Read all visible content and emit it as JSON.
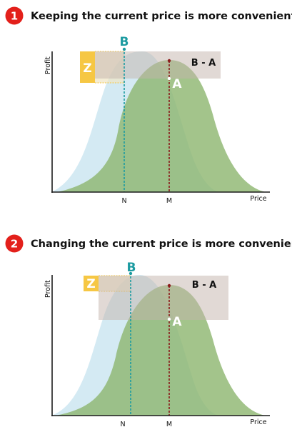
{
  "panels": [
    {
      "number": "1",
      "title": "Keeping the current price is more convenient",
      "y_axis_label": "Profit",
      "x_axis_label": "Price",
      "tick_n": "N",
      "tick_m": "M",
      "label_b": "B",
      "label_a": "A",
      "label_z": "Z",
      "label_ba": "B - A"
    },
    {
      "number": "2",
      "title": "Changing the current price is more convenient",
      "y_axis_label": "Profit",
      "x_axis_label": "Price",
      "tick_n": "N",
      "tick_m": "M",
      "label_b": "B",
      "label_a": "A",
      "label_z": "Z",
      "label_ba": "B - A"
    }
  ],
  "colors": {
    "badge": "#e3201b",
    "light_curve": "#cfe8f2",
    "dark_curve": "#8fb771",
    "z_box": "#f6c744",
    "ba_box": "#c4b3ab",
    "b_color": "#1c9ba1",
    "m_line": "#8b1a1a",
    "axis": "#1a1a1a"
  }
}
